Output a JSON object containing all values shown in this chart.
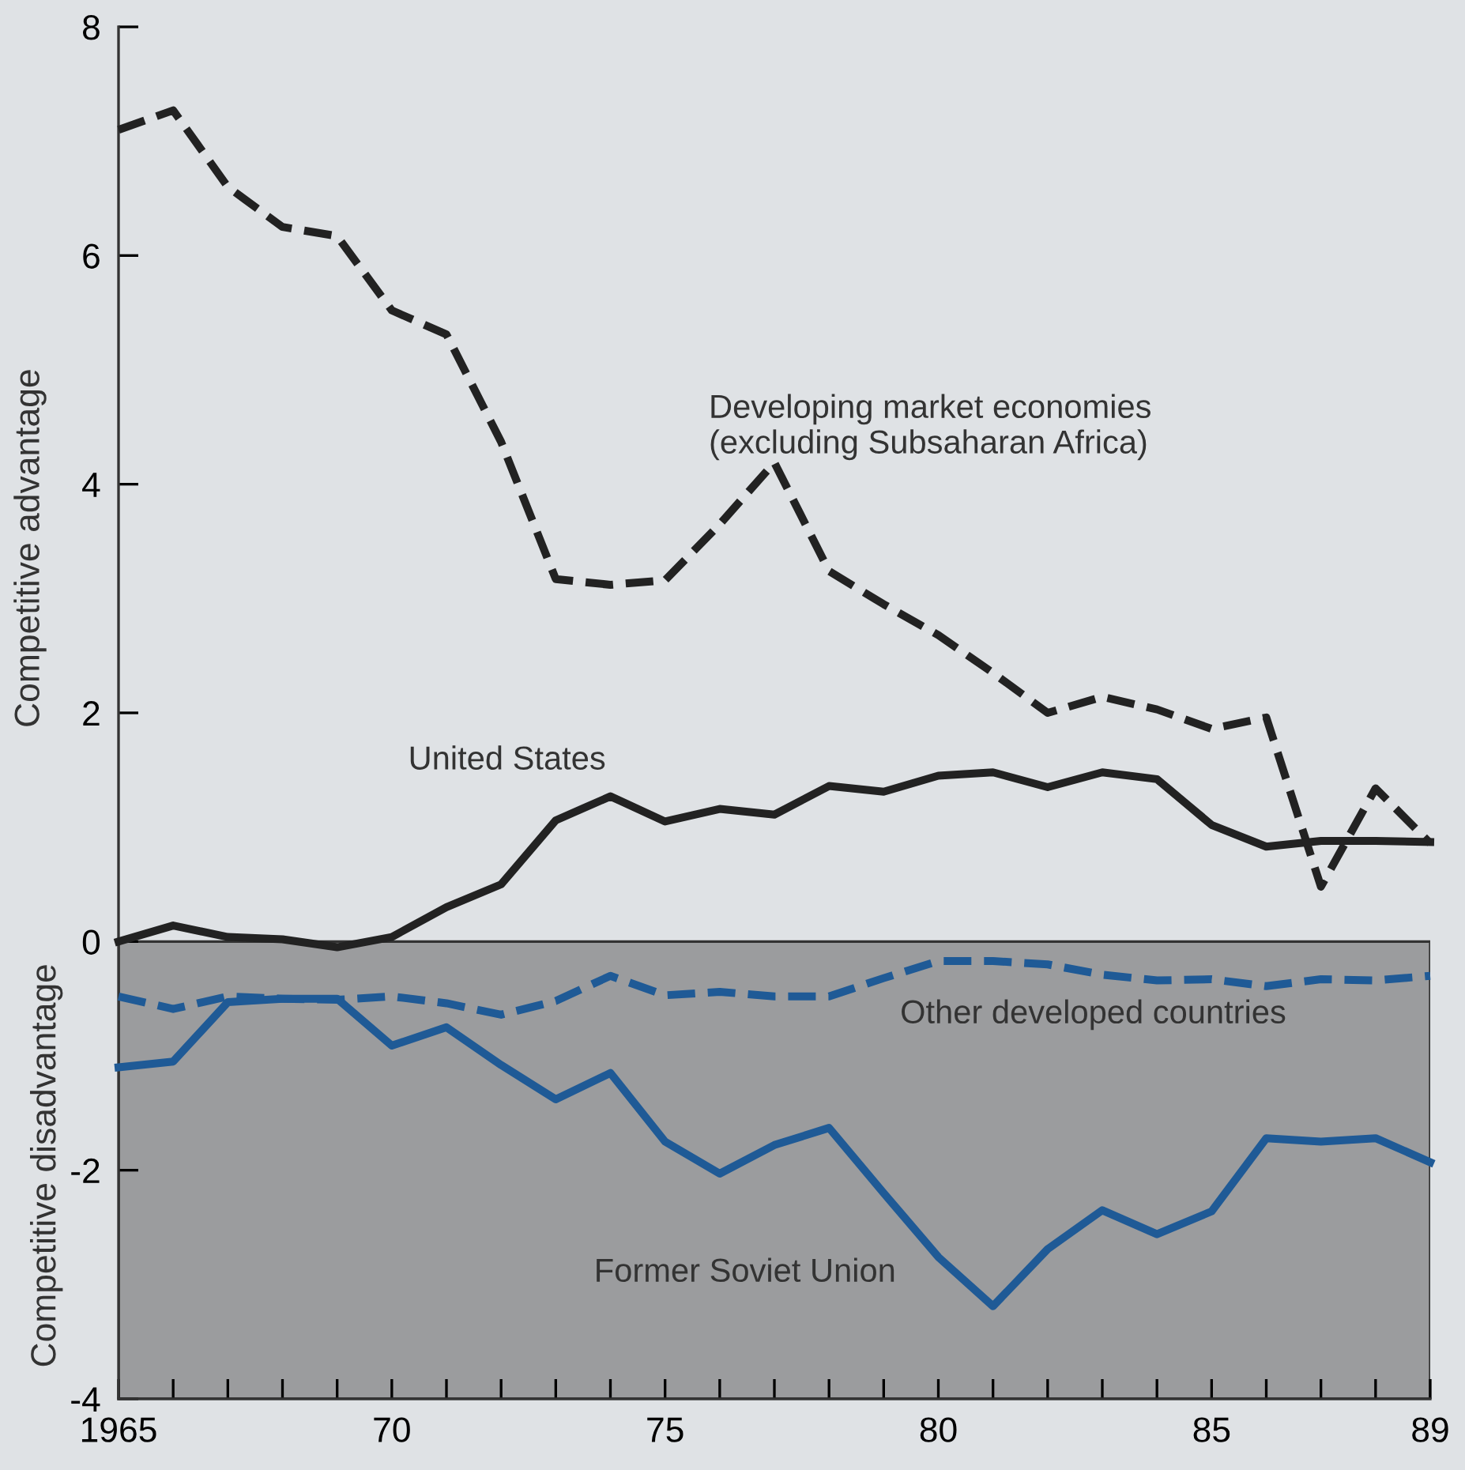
{
  "chart_data": {
    "type": "line",
    "ylabel": "Competitive advantage",
    "annotations": [
      "Competitive disadvantage"
    ],
    "x": [
      1965,
      1966,
      1967,
      1968,
      1969,
      1970,
      1971,
      1972,
      1973,
      1974,
      1975,
      1976,
      1977,
      1978,
      1979,
      1980,
      1981,
      1982,
      1983,
      1984,
      1985,
      1986,
      1987,
      1988,
      1989
    ],
    "series": [
      {
        "name": "Developing market economies\n(excluding Subsaharan Africa)",
        "color": "#222222",
        "line_style": "dashed",
        "values": [
          7.1,
          7.27,
          6.6,
          6.25,
          6.17,
          5.52,
          5.31,
          4.37,
          3.17,
          3.12,
          3.16,
          3.65,
          4.19,
          3.24,
          2.95,
          2.68,
          2.35,
          2.0,
          2.14,
          2.03,
          1.86,
          1.96,
          0.48,
          1.34,
          0.86
        ]
      },
      {
        "name": "United States",
        "color": "#222222",
        "line_style": "solid",
        "values": [
          0.0,
          0.14,
          0.04,
          0.02,
          -0.05,
          0.04,
          0.3,
          0.5,
          1.06,
          1.27,
          1.05,
          1.16,
          1.11,
          1.36,
          1.31,
          1.45,
          1.48,
          1.35,
          1.48,
          1.42,
          1.02,
          0.83,
          0.88,
          0.88,
          0.87
        ]
      },
      {
        "name": "Other developed countries",
        "color": "#1f5a96",
        "line_style": "dashed",
        "values": [
          -0.48,
          -0.59,
          -0.48,
          -0.5,
          -0.51,
          -0.48,
          -0.54,
          -0.64,
          -0.52,
          -0.3,
          -0.47,
          -0.44,
          -0.48,
          -0.48,
          -0.32,
          -0.17,
          -0.17,
          -0.2,
          -0.29,
          -0.34,
          -0.33,
          -0.39,
          -0.33,
          -0.34,
          -0.3
        ]
      },
      {
        "name": "Former Soviet Union",
        "color": "#1f5a96",
        "line_style": "solid",
        "values": [
          -1.1,
          -1.05,
          -0.53,
          -0.5,
          -0.5,
          -0.91,
          -0.75,
          -1.08,
          -1.38,
          -1.15,
          -1.75,
          -2.03,
          -1.78,
          -1.63,
          -2.2,
          -2.76,
          -3.19,
          -2.69,
          -2.35,
          -2.56,
          -2.36,
          -1.72,
          -1.75,
          -1.72,
          -1.93
        ]
      }
    ],
    "bands": [
      {
        "axis": "y",
        "from": -4,
        "to": 0,
        "color": "#9b9c9e"
      }
    ],
    "xlim": [
      1965,
      1989
    ],
    "xticks": [
      {
        "value": 1965,
        "label": "1965"
      },
      {
        "value": 1966,
        "label": null
      },
      {
        "value": 1967,
        "label": null
      },
      {
        "value": 1968,
        "label": null
      },
      {
        "value": 1969,
        "label": null
      },
      {
        "value": 1970,
        "label": "70"
      },
      {
        "value": 1971,
        "label": null
      },
      {
        "value": 1972,
        "label": null
      },
      {
        "value": 1973,
        "label": null
      },
      {
        "value": 1974,
        "label": null
      },
      {
        "value": 1975,
        "label": "75"
      },
      {
        "value": 1976,
        "label": null
      },
      {
        "value": 1977,
        "label": null
      },
      {
        "value": 1978,
        "label": null
      },
      {
        "value": 1979,
        "label": null
      },
      {
        "value": 1980,
        "label": "80"
      },
      {
        "value": 1981,
        "label": null
      },
      {
        "value": 1982,
        "label": null
      },
      {
        "value": 1983,
        "label": null
      },
      {
        "value": 1984,
        "label": null
      },
      {
        "value": 1985,
        "label": "85"
      },
      {
        "value": 1986,
        "label": null
      },
      {
        "value": 1987,
        "label": null
      },
      {
        "value": 1988,
        "label": null
      },
      {
        "value": 1989,
        "label": "89"
      }
    ],
    "ylim": [
      -4,
      8
    ],
    "yticks": [
      -4,
      -2,
      0,
      2,
      4,
      6,
      8
    ],
    "grid": false,
    "legend": false
  }
}
